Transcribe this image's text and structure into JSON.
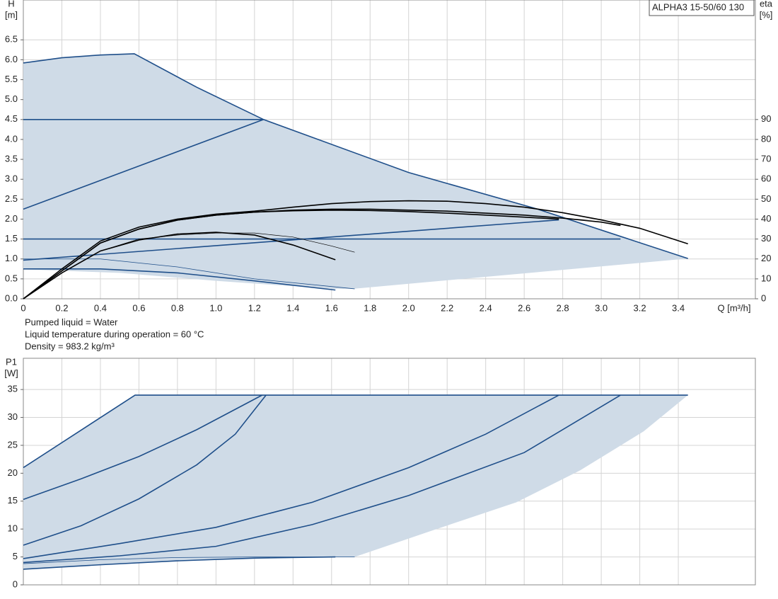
{
  "chart_data": [
    {
      "type": "line",
      "title": "ALPHA3 15-50/60 130",
      "ylabel": "H",
      "yunit": "[m]",
      "y2label": "eta",
      "y2unit": "[%]",
      "xlabel": "Q [m³/h]",
      "notes": [
        "Pumped liquid = Water",
        "Liquid temperature during operation = 60 °C",
        "Density = 983.2 kg/m³"
      ],
      "xlim": [
        0,
        3.8
      ],
      "xticks": [
        {
          "value": 0,
          "label": "0"
        },
        0.2,
        0.4,
        0.6,
        0.8,
        {
          "value": 1,
          "label": "1.0"
        },
        1.2,
        1.4,
        1.6,
        1.8,
        {
          "value": 2,
          "label": "2.0"
        },
        2.2,
        2.4,
        2.6,
        2.8,
        {
          "value": 3,
          "label": "3.0"
        },
        3.2,
        3.4
      ],
      "ylim": [
        0,
        7.5
      ],
      "yticks": [
        {
          "value": 0,
          "label": "0.0"
        },
        0.5,
        {
          "value": 1,
          "label": "1.0"
        },
        1.5,
        {
          "value": 2,
          "label": "2.0"
        },
        2.5,
        {
          "value": 3,
          "label": "3.0"
        },
        3.5,
        {
          "value": 4,
          "label": "4.0"
        },
        4.5,
        {
          "value": 5,
          "label": "5.0"
        },
        5.5,
        {
          "value": 6,
          "label": "6.0"
        },
        6.5
      ],
      "y2lim": [
        0,
        150
      ],
      "y2ticks": [
        0,
        10,
        20,
        30,
        40,
        50,
        60,
        70,
        80,
        90
      ],
      "grid": true,
      "show_xtick_labels": true,
      "fill": {
        "color": "#cfdbe7",
        "x": [
          0,
          0.2,
          0.4,
          0.576,
          0.9,
          1.247,
          2.0,
          2.67,
          3.45,
          1.71,
          1.6,
          1.0,
          0.5,
          0
        ],
        "values": [
          5.92,
          6.05,
          6.12,
          6.15,
          5.31,
          4.5,
          3.17,
          2.25,
          1.01,
          0.25,
          0.25,
          0.45,
          0.65,
          0.74
        ]
      },
      "series": [
        {
          "color": "#1f4f8a",
          "x": [
            0,
            0.2,
            0.4,
            0.576,
            0.9,
            1.247,
            2.0,
            2.67,
            3.45
          ],
          "values": [
            5.92,
            6.05,
            6.12,
            6.15,
            5.31,
            4.5,
            3.17,
            2.25,
            1.01
          ]
        },
        {
          "color": "#1f4f8a",
          "x": [
            0,
            1.247
          ],
          "values": [
            4.5,
            4.5
          ]
        },
        {
          "color": "#1f4f8a",
          "x": [
            0,
            1.247
          ],
          "values": [
            2.25,
            4.5
          ]
        },
        {
          "color": "#1f4f8a",
          "x": [
            0,
            3.1
          ],
          "values": [
            1.5,
            1.5
          ]
        },
        {
          "color": "#1f4f8a",
          "x": [
            0,
            2.78
          ],
          "values": [
            0.97,
            1.98
          ]
        },
        {
          "color": "#1f4f8a",
          "x": [
            0,
            0.4,
            0.8,
            1.2,
            1.72
          ],
          "values": [
            1.0,
            1.0,
            0.8,
            0.5,
            0.25
          ],
          "width": 0.8
        },
        {
          "color": "#1f4f8a",
          "x": [
            0,
            0.4,
            0.8,
            1.2,
            1.62
          ],
          "values": [
            0.75,
            0.75,
            0.65,
            0.45,
            0.22
          ]
        },
        {
          "color": "#000000",
          "axis": "y2",
          "x": [
            0,
            0.2,
            0.4,
            0.6,
            0.8,
            1.0,
            1.2,
            1.4,
            1.6,
            1.8,
            2.0,
            2.2,
            2.4,
            2.6,
            2.8,
            3.0,
            3.2,
            3.45
          ],
          "values": [
            0,
            15,
            29,
            36,
            40,
            42.5,
            44,
            46,
            47.8,
            48.8,
            49.2,
            49,
            47.8,
            46,
            43.2,
            39.6,
            35.4,
            27.6
          ]
        },
        {
          "color": "#000000",
          "axis": "y2",
          "x": [
            0,
            0.2,
            0.4,
            0.6,
            0.8,
            1.0,
            1.2,
            1.4,
            1.6,
            1.8,
            2.0,
            2.2,
            2.4,
            2.6,
            2.8,
            3.0,
            3.1
          ],
          "values": [
            0,
            14,
            28,
            35,
            39.5,
            42,
            43.5,
            44.5,
            45,
            45,
            44.5,
            44,
            43,
            42,
            40.5,
            38.5,
            36.8
          ]
        },
        {
          "color": "#000000",
          "axis": "y2",
          "x": [
            0,
            0.2,
            0.4,
            0.6,
            0.8,
            1.0,
            1.2,
            1.4,
            1.6,
            1.8,
            2.0,
            2.2,
            2.4,
            2.6,
            2.78
          ],
          "values": [
            0,
            14,
            28,
            35,
            39.5,
            42,
            43.5,
            44.2,
            44.5,
            44.3,
            43.8,
            43,
            42,
            41,
            40
          ]
        },
        {
          "color": "#000000",
          "axis": "y2",
          "x": [
            0,
            0.2,
            0.4,
            0.6,
            0.8,
            1.0,
            1.2,
            1.4,
            1.62
          ],
          "values": [
            0,
            13,
            24,
            29.5,
            32.5,
            33.4,
            32,
            27,
            19.6
          ]
        },
        {
          "color": "#000000",
          "axis": "y2",
          "width": 0.7,
          "x": [
            0,
            0.2,
            0.4,
            0.6,
            0.8,
            1.0,
            1.2,
            1.4,
            1.6,
            1.72
          ],
          "values": [
            0,
            13,
            24,
            30,
            32,
            33,
            33,
            31,
            26.5,
            23.4
          ]
        }
      ]
    },
    {
      "type": "line",
      "ylabel": "P1",
      "yunit": "[W]",
      "xlim": [
        0,
        3.8
      ],
      "xticks": [
        0,
        0.2,
        0.4,
        0.6,
        0.8,
        1,
        1.2,
        1.4,
        1.6,
        1.8,
        2,
        2.2,
        2.4,
        2.6,
        2.8,
        3,
        3.2,
        3.4
      ],
      "ylim": [
        0,
        40.6
      ],
      "yticks": [
        0,
        5,
        10,
        15,
        20,
        25,
        30,
        35
      ],
      "grid": true,
      "show_xtick_labels": false,
      "fill": {
        "color": "#cfdbe7",
        "x": [
          0,
          0.58,
          3.45,
          3.22,
          2.89,
          2.56,
          2.12,
          1.72,
          1.62,
          0.8,
          0
        ],
        "values": [
          21,
          34,
          34,
          27.5,
          20.5,
          14.8,
          9.7,
          5,
          5,
          4.3,
          2.8
        ]
      },
      "series": [
        {
          "color": "#1f4f8a",
          "x": [
            0,
            0.58,
            3.45
          ],
          "values": [
            21,
            34,
            34
          ]
        },
        {
          "color": "#1f4f8a",
          "x": [
            0,
            0.3,
            0.6,
            0.9,
            1.24
          ],
          "values": [
            15.3,
            19,
            23,
            27.8,
            34
          ]
        },
        {
          "color": "#1f4f8a",
          "x": [
            0,
            0.3,
            0.6,
            0.9,
            1.1,
            1.26
          ],
          "values": [
            7.1,
            10.6,
            15.4,
            21.5,
            27,
            34
          ]
        },
        {
          "color": "#1f4f8a",
          "x": [
            0,
            0.5,
            1.0,
            1.5,
            2.0,
            2.4,
            2.78
          ],
          "values": [
            4.7,
            7.4,
            10.3,
            14.8,
            21,
            27,
            34
          ]
        },
        {
          "color": "#1f4f8a",
          "x": [
            0,
            0.5,
            1.0,
            1.5,
            2.0,
            2.6,
            3.1
          ],
          "values": [
            4.0,
            5.2,
            6.9,
            10.8,
            16,
            23.7,
            34
          ]
        },
        {
          "color": "#1f4f8a",
          "x": [
            0,
            0.4,
            0.8,
            1.2,
            1.62
          ],
          "values": [
            2.8,
            3.6,
            4.3,
            4.8,
            5
          ]
        },
        {
          "color": "#1f4f8a",
          "width": 0.8,
          "x": [
            0,
            0.4,
            0.8,
            1.2,
            1.72
          ],
          "values": [
            3.8,
            4.5,
            4.9,
            5,
            5
          ]
        }
      ]
    }
  ]
}
